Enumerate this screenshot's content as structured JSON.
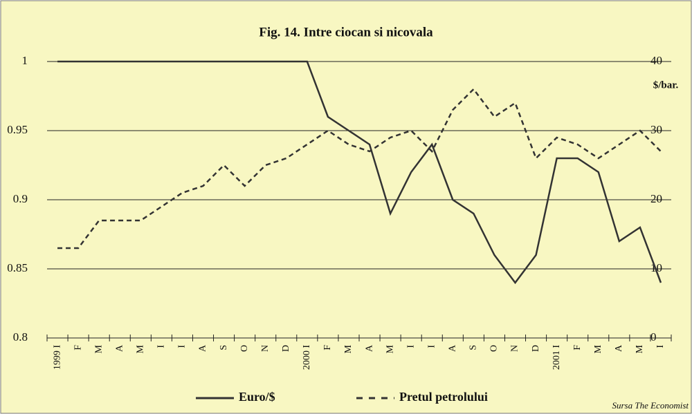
{
  "chart_data": {
    "type": "line",
    "title": "Fig. 14. Intre ciocan si nicovala",
    "y2_label": "$/bar.",
    "source": "Sursa The Economist",
    "categories": [
      "1999 I",
      "F",
      "M",
      "A",
      "M",
      "I",
      "I",
      "A",
      "S",
      "O",
      "N",
      "D",
      "2000 I",
      "F",
      "M",
      "A",
      "M",
      "I",
      "I",
      "A",
      "S",
      "O",
      "N",
      "D",
      "2001 I",
      "F",
      "M",
      "A",
      "M",
      "I"
    ],
    "series": [
      {
        "name": "Euro/$",
        "color": "#333333",
        "dash": false,
        "values": [
          1,
          1,
          1,
          1,
          1,
          1,
          1,
          1,
          1,
          1,
          1,
          1,
          1,
          0.96,
          0.95,
          0.94,
          0.89,
          0.92,
          0.94,
          0.9,
          0.89,
          0.86,
          0.84,
          0.86,
          0.93,
          0.93,
          0.92,
          0.87,
          0.88,
          0.84
        ]
      },
      {
        "name": "Pretul petrolului",
        "color": "#333333",
        "dash": true,
        "axis": "y2",
        "values": [
          13,
          13,
          17,
          17,
          17,
          19,
          21,
          22,
          25,
          22,
          25,
          26,
          28,
          30,
          28,
          27,
          29,
          30,
          27,
          33,
          36,
          32,
          34,
          26,
          29,
          28,
          26,
          28,
          30,
          27
        ]
      }
    ],
    "ylim": [
      0.8,
      1
    ],
    "yticks": [
      0.8,
      0.85,
      0.9,
      0.95,
      1
    ],
    "y2lim": [
      0,
      40
    ],
    "y2ticks": [
      0,
      10,
      20,
      30,
      40
    ],
    "grid": true
  }
}
